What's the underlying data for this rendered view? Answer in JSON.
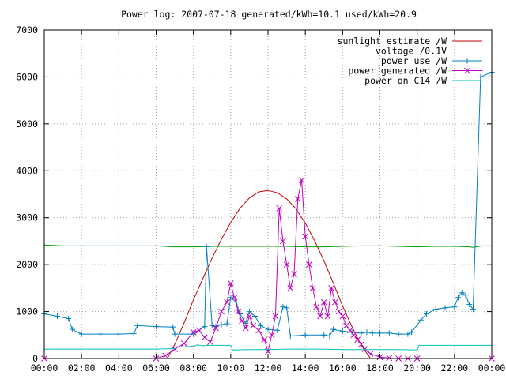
{
  "chart_data": {
    "type": "line",
    "title": "Power log: 2007-07-18 generated/kWh=10.1 used/kWh=20.9",
    "xlabel": "",
    "ylabel": "",
    "xlim": [
      0,
      24
    ],
    "ylim": [
      0,
      7000
    ],
    "x_ticks": [
      "00:00",
      "02:00",
      "04:00",
      "06:00",
      "08:00",
      "10:00",
      "12:00",
      "14:00",
      "16:00",
      "18:00",
      "20:00",
      "22:00",
      "00:00"
    ],
    "y_ticks": [
      "0",
      "1000",
      "2000",
      "3000",
      "4000",
      "5000",
      "6000",
      "7000"
    ],
    "grid": true,
    "legend_position": "top-right",
    "series": [
      {
        "name": "sunlight estimate /W",
        "color": "#c00000",
        "marker": "none",
        "x": [
          6.6,
          7.0,
          7.5,
          8.0,
          8.5,
          9.0,
          9.5,
          10.0,
          10.5,
          11.0,
          11.5,
          12.0,
          12.5,
          13.0,
          13.5,
          14.0,
          14.5,
          15.0,
          15.5,
          16.0,
          16.5,
          17.0,
          17.5
        ],
        "y": [
          0,
          300,
          760,
          1250,
          1700,
          2140,
          2540,
          2900,
          3200,
          3420,
          3550,
          3580,
          3530,
          3400,
          3190,
          2880,
          2510,
          2080,
          1610,
          1120,
          680,
          280,
          0
        ]
      },
      {
        "name": "voltage /0.1V",
        "color": "#00a000",
        "marker": "none",
        "x": [
          0,
          1,
          2,
          3,
          4,
          5,
          6,
          7,
          8,
          9,
          10,
          11,
          12,
          13,
          14,
          15,
          16,
          17,
          18,
          19,
          20,
          21,
          22,
          22.8,
          23.0,
          23.5,
          24
        ],
        "y": [
          2420,
          2400,
          2400,
          2400,
          2400,
          2400,
          2400,
          2380,
          2380,
          2390,
          2390,
          2390,
          2390,
          2390,
          2380,
          2380,
          2390,
          2400,
          2400,
          2390,
          2380,
          2390,
          2390,
          2380,
          2370,
          2400,
          2400
        ]
      },
      {
        "name": "power use /W",
        "color": "#0080c0",
        "marker": "+",
        "x": [
          0,
          0.7,
          1.3,
          1.5,
          2,
          3,
          4,
          4.8,
          5,
          6,
          6.9,
          7,
          8,
          8.6,
          8.7,
          9,
          9.2,
          9.5,
          9.8,
          10.0,
          10.3,
          10.5,
          10.8,
          11.0,
          11.3,
          11.6,
          12.0,
          12.5,
          12.8,
          13.0,
          13.2,
          14,
          15,
          15.3,
          15.5,
          16,
          16.5,
          17,
          17.3,
          17.6,
          18,
          18.5,
          19,
          19.5,
          19.7,
          20.2,
          20.5,
          21,
          21.5,
          22,
          22.2,
          22.4,
          22.6,
          22.8,
          23.0,
          23.4,
          24
        ],
        "y": [
          950,
          900,
          850,
          620,
          520,
          520,
          520,
          530,
          700,
          680,
          670,
          520,
          520,
          680,
          2380,
          700,
          680,
          720,
          740,
          1300,
          1200,
          950,
          750,
          1000,
          900,
          700,
          620,
          600,
          1100,
          1080,
          480,
          500,
          500,
          480,
          620,
          580,
          560,
          540,
          560,
          540,
          540,
          540,
          520,
          520,
          560,
          820,
          950,
          1050,
          1080,
          1100,
          1300,
          1400,
          1350,
          1150,
          1050,
          6000,
          6100
        ]
      },
      {
        "name": "power generated /W",
        "color": "#c000c0",
        "marker": "x",
        "x": [
          0,
          6,
          6.5,
          7,
          7.5,
          8,
          8.3,
          8.6,
          8.9,
          9.2,
          9.5,
          9.8,
          10.0,
          10.2,
          10.4,
          10.6,
          10.8,
          11.0,
          11.2,
          11.5,
          11.8,
          12.0,
          12.2,
          12.4,
          12.6,
          12.8,
          13.0,
          13.2,
          13.4,
          13.6,
          13.8,
          14.0,
          14.2,
          14.4,
          14.6,
          14.8,
          15.0,
          15.2,
          15.4,
          15.6,
          15.8,
          16.0,
          16.2,
          16.4,
          16.6,
          16.8,
          17.0,
          17.2,
          17.5,
          18,
          18.5,
          19,
          19.5,
          20,
          24
        ],
        "y": [
          0,
          0,
          60,
          200,
          320,
          560,
          600,
          450,
          350,
          650,
          1000,
          1200,
          1600,
          1300,
          1000,
          800,
          650,
          900,
          700,
          600,
          400,
          150,
          500,
          900,
          3200,
          2500,
          2000,
          1500,
          1800,
          3400,
          3800,
          2600,
          2000,
          1500,
          1100,
          900,
          1200,
          900,
          1500,
          1200,
          1000,
          900,
          700,
          600,
          500,
          400,
          300,
          200,
          100,
          30,
          10,
          0,
          0,
          0,
          0
        ]
      },
      {
        "name": "power on C14 /W",
        "color": "#00c0c0",
        "marker": "none",
        "x": [
          0,
          1,
          2,
          3,
          4,
          5,
          6,
          7,
          7.1,
          8.0,
          8.2,
          8.5,
          8.8,
          9.0,
          9.5,
          10.0,
          10.1,
          11.0,
          12,
          13,
          14,
          15,
          16,
          17,
          18,
          19,
          20,
          20.1,
          21,
          22,
          23,
          24
        ],
        "y": [
          200,
          200,
          200,
          200,
          200,
          200,
          200,
          210,
          240,
          260,
          290,
          270,
          280,
          280,
          280,
          280,
          180,
          190,
          190,
          200,
          200,
          200,
          190,
          190,
          190,
          190,
          180,
          280,
          280,
          280,
          280,
          280
        ]
      }
    ]
  }
}
